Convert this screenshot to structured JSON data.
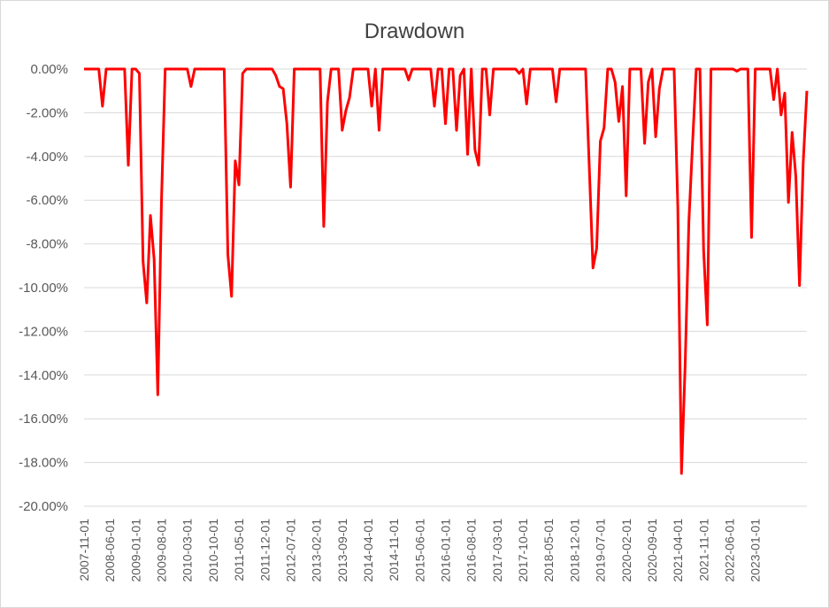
{
  "chart_data": {
    "type": "line",
    "title": "Drawdown",
    "xlabel": "",
    "ylabel": "",
    "y_unit": "percent",
    "ylim": [
      -20,
      0
    ],
    "y_ticks": [
      0,
      -2,
      -4,
      -6,
      -8,
      -10,
      -12,
      -14,
      -16,
      -18,
      -20
    ],
    "y_tick_labels": [
      "0.00%",
      "-2.00%",
      "-4.00%",
      "-6.00%",
      "-8.00%",
      "-10.00%",
      "-12.00%",
      "-14.00%",
      "-16.00%",
      "-18.00%",
      "-20.00%"
    ],
    "x_tick_labels": [
      "2007-11-01",
      "2008-06-01",
      "2009-01-01",
      "2009-08-01",
      "2010-03-01",
      "2010-10-01",
      "2011-05-01",
      "2011-12-01",
      "2012-07-01",
      "2013-02-01",
      "2013-09-01",
      "2014-04-01",
      "2014-11-01",
      "2015-06-01",
      "2016-01-01",
      "2016-08-01",
      "2017-03-01",
      "2017-10-01",
      "2018-05-01",
      "2018-12-01",
      "2019-07-01",
      "2020-02-01",
      "2020-09-01",
      "2021-04-01",
      "2021-11-01",
      "2022-06-01",
      "2023-01-01"
    ],
    "grid": true,
    "legend": "none",
    "line_color": "#ff0000",
    "series": [
      {
        "x_start": "2007-11-01",
        "frequency": "monthly",
        "values": [
          0,
          0,
          0,
          0,
          0,
          -1.7,
          0,
          0,
          0,
          0,
          0,
          0,
          -4.4,
          0,
          0,
          -0.2,
          -8.8,
          -10.7,
          -6.7,
          -8.7,
          -14.9,
          -6.0,
          0,
          0,
          0,
          0,
          0,
          0,
          0,
          -0.8,
          0,
          0,
          0,
          0,
          0,
          0,
          0,
          0,
          0,
          -8.5,
          -10.4,
          -4.2,
          -5.3,
          -0.2,
          0,
          0,
          0,
          0,
          0,
          0,
          0,
          0,
          -0.3,
          -0.8,
          -0.9,
          -2.5,
          -5.4,
          0,
          0,
          0,
          0,
          0,
          0,
          0,
          0,
          -7.2,
          -1.5,
          0,
          0,
          0,
          -2.8,
          -1.9,
          -1.3,
          0,
          0,
          0,
          0,
          0,
          -1.7,
          0,
          -2.8,
          0,
          0,
          0,
          0,
          0,
          0,
          0,
          -0.5,
          0,
          0,
          0,
          0,
          0,
          0,
          -1.7,
          0,
          0,
          -2.5,
          0,
          0,
          -2.8,
          -0.3,
          0,
          -3.9,
          0,
          -3.7,
          -4.4,
          0,
          0,
          -2.1,
          0,
          0,
          0,
          0,
          0,
          0,
          0,
          -0.2,
          0,
          -1.6,
          0,
          0,
          0,
          0,
          0,
          0,
          0,
          -1.5,
          0,
          0,
          0,
          0,
          0,
          0,
          0,
          0,
          -4.5,
          -9.1,
          -8.2,
          -3.3,
          -2.7,
          0,
          0,
          -0.6,
          -2.4,
          -0.8,
          -5.8,
          0,
          0,
          0,
          0,
          -3.4,
          -0.6,
          0,
          -3.1,
          -0.9,
          0,
          0,
          0,
          0,
          -6.3,
          -18.5,
          -13.5,
          -7.0,
          -3.4,
          0,
          0,
          -8.3,
          -11.7,
          0,
          0,
          0,
          0,
          0,
          0,
          0,
          -0.1,
          0,
          0,
          0,
          -7.7,
          0,
          0,
          0,
          0,
          0,
          -1.4,
          0,
          -2.1,
          -1.1,
          -6.1,
          -2.9,
          -4.9,
          -9.9,
          -4.3,
          -1.0
        ]
      }
    ]
  }
}
